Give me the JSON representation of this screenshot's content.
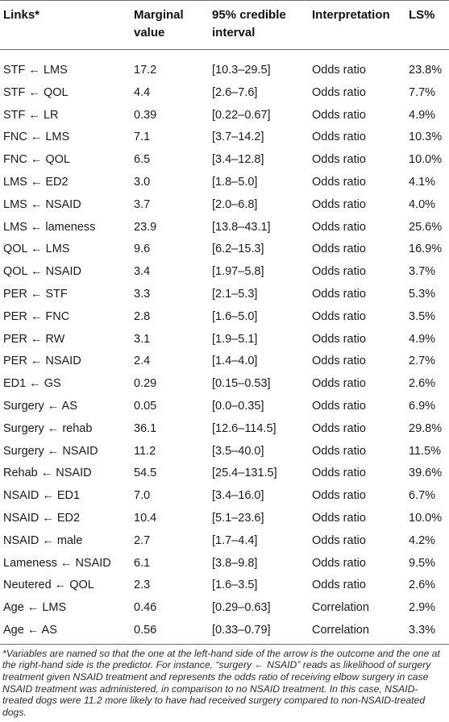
{
  "table": {
    "columns": [
      "Links*",
      "Marginal value",
      "95% credible interval",
      "Interpretation",
      "LS%"
    ],
    "rows": [
      {
        "link": "STF ← LMS",
        "value": "17.2",
        "interval": "[10.3–29.5]",
        "interpretation": "Odds ratio",
        "ls": "23.8%"
      },
      {
        "link": "STF ← QOL",
        "value": "4.4",
        "interval": "[2.6–7.6]",
        "interpretation": "Odds ratio",
        "ls": "7.7%"
      },
      {
        "link": "STF ← LR",
        "value": "0.39",
        "interval": "[0.22–0.67]",
        "interpretation": "Odds ratio",
        "ls": "4.9%"
      },
      {
        "link": "FNC ← LMS",
        "value": "7.1",
        "interval": "[3.7–14.2]",
        "interpretation": "Odds ratio",
        "ls": "10.3%"
      },
      {
        "link": "FNC ← QOL",
        "value": "6.5",
        "interval": "[3.4–12.8]",
        "interpretation": "Odds ratio",
        "ls": "10.0%"
      },
      {
        "link": "LMS ← ED2",
        "value": "3.0",
        "interval": "[1.8–5.0]",
        "interpretation": "Odds ratio",
        "ls": "4.1%"
      },
      {
        "link": "LMS ← NSAID",
        "value": "3.7",
        "interval": "[2.0–6.8]",
        "interpretation": "Odds ratio",
        "ls": "4.0%"
      },
      {
        "link": "LMS ← lameness",
        "value": "23.9",
        "interval": "[13.8–43.1]",
        "interpretation": "Odds ratio",
        "ls": "25.6%"
      },
      {
        "link": "QOL ← LMS",
        "value": "9.6",
        "interval": "[6.2–15.3]",
        "interpretation": "Odds ratio",
        "ls": "16.9%"
      },
      {
        "link": "QOL ← NSAID",
        "value": "3.4",
        "interval": "[1.97–5.8]",
        "interpretation": "Odds ratio",
        "ls": "3.7%"
      },
      {
        "link": "PER ← STF",
        "value": "3.3",
        "interval": "[2.1–5.3]",
        "interpretation": "Odds ratio",
        "ls": "5.3%"
      },
      {
        "link": "PER ← FNC",
        "value": "2.8",
        "interval": "[1.6–5.0]",
        "interpretation": "Odds ratio",
        "ls": "3.5%"
      },
      {
        "link": "PER ← RW",
        "value": "3.1",
        "interval": "[1.9–5.1]",
        "interpretation": "Odds ratio",
        "ls": "4.9%"
      },
      {
        "link": "PER ← NSAID",
        "value": "2.4",
        "interval": "[1.4–4.0]",
        "interpretation": "Odds ratio",
        "ls": "2.7%"
      },
      {
        "link": "ED1 ← GS",
        "value": "0.29",
        "interval": "[0.15–0.53]",
        "interpretation": "Odds ratio",
        "ls": "2.6%"
      },
      {
        "link": "Surgery ← AS",
        "value": "0.05",
        "interval": "[0.0–0.35]",
        "interpretation": "Odds ratio",
        "ls": "6.9%"
      },
      {
        "link": "Surgery ← rehab",
        "value": "36.1",
        "interval": "[12.6–114.5]",
        "interpretation": "Odds ratio",
        "ls": "29.8%"
      },
      {
        "link": "Surgery ← NSAID",
        "value": "11.2",
        "interval": "[3.5–40.0]",
        "interpretation": "Odds ratio",
        "ls": "11.5%"
      },
      {
        "link": "Rehab ← NSAID",
        "value": "54.5",
        "interval": "[25.4–131.5]",
        "interpretation": "Odds ratio",
        "ls": "39.6%"
      },
      {
        "link": "NSAID ← ED1",
        "value": "7.0",
        "interval": "[3.4–16.0]",
        "interpretation": "Odds ratio",
        "ls": "6.7%"
      },
      {
        "link": "NSAID ← ED2",
        "value": "10.4",
        "interval": "[5.1–23.6]",
        "interpretation": "Odds ratio",
        "ls": "10.0%"
      },
      {
        "link": "NSAID ← male",
        "value": "2.7",
        "interval": "[1.7–4.4]",
        "interpretation": "Odds ratio",
        "ls": "4.2%"
      },
      {
        "link": "Lameness ← NSAID",
        "value": "6.1",
        "interval": "[3.8–9.8]",
        "interpretation": "Odds ratio",
        "ls": "9.5%"
      },
      {
        "link": "Neutered ← QOL",
        "value": "2.3",
        "interval": "[1.6–3.5]",
        "interpretation": "Odds ratio",
        "ls": "2.6%"
      },
      {
        "link": "Age ← LMS",
        "value": "0.46",
        "interval": "[0.29–0.63]",
        "interpretation": "Correlation",
        "ls": "2.9%"
      },
      {
        "link": "Age ← AS",
        "value": "0.56",
        "interval": "[0.33–0.79]",
        "interpretation": "Correlation",
        "ls": "3.3%"
      }
    ]
  },
  "footnote": "*Variables are named so that the one at the left-hand side of the arrow is the outcome and the one at the right-hand side is the predictor. For instance, “surgery ← NSAID” reads as likelihood of surgery treatment given NSAID treatment and represents the odds ratio of receiving elbow surgery in case NSAID treatment was administered, in comparison to no NSAID treatment. In this case, NSAID-treated dogs were 11.2 more likely to have had received surgery compared to non-NSAID-treated dogs."
}
